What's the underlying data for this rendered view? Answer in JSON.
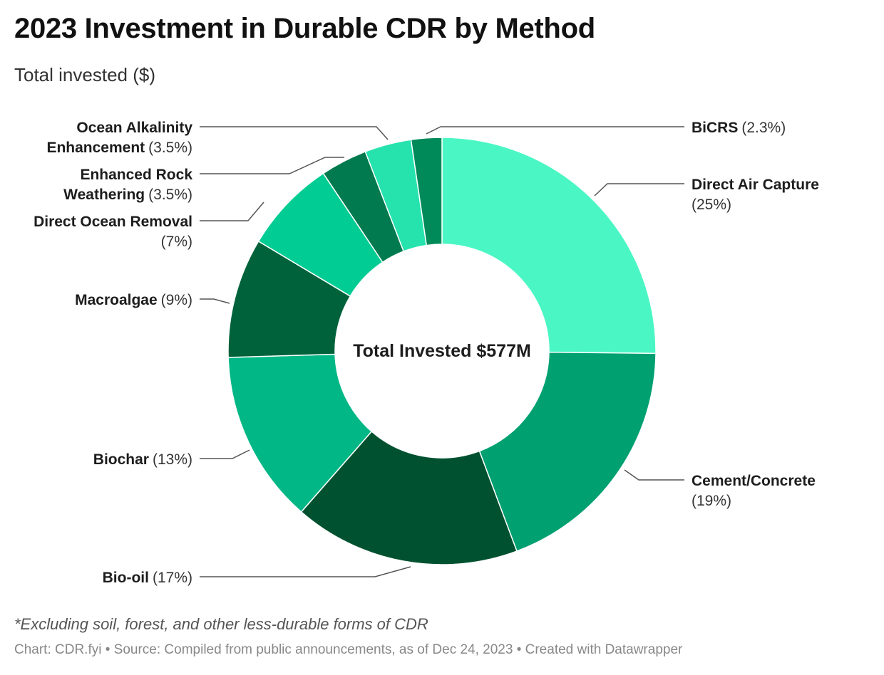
{
  "header": {
    "title": "2023 Investment in Durable CDR by Method",
    "subtitle": "Total invested ($)"
  },
  "chart_data": {
    "type": "pie",
    "donut": true,
    "center_label": "Total Invested $577M",
    "start_slice": "Direct Air Capture",
    "slices": [
      {
        "label": "Direct Air Capture",
        "value": 25,
        "value_text": "(25%)",
        "color": "#4af7c4"
      },
      {
        "label": "Cement/Concrete",
        "value": 19,
        "value_text": "(19%)",
        "color": "#00a070"
      },
      {
        "label": "Bio-oil",
        "value": 17,
        "value_text": "(17%)",
        "color": "#00512f"
      },
      {
        "label": "Biochar",
        "value": 13,
        "value_text": "(13%)",
        "color": "#00b785"
      },
      {
        "label": "Macroalgae",
        "value": 9,
        "value_text": "(9%)",
        "color": "#00623a"
      },
      {
        "label": "Direct Ocean Removal",
        "value": 7,
        "value_text": "(7%)",
        "color": "#00cc93"
      },
      {
        "label": "Enhanced Rock Weathering",
        "value": 3.5,
        "value_text": "(3.5%)",
        "color": "#007a4e"
      },
      {
        "label": "Ocean Alkalinity Enhancement",
        "value": 3.5,
        "value_text": "(3.5%)",
        "color": "#26e3ae"
      },
      {
        "label": "BiCRS",
        "value": 2.3,
        "value_text": "(2.3%)",
        "color": "#008a5a"
      }
    ]
  },
  "footer": {
    "note": "*Excluding soil, forest, and other less-durable forms of CDR",
    "source": "Chart: CDR.fyi • Source: Compiled from public announcements, as of Dec 24, 2023 • Created with Datawrapper"
  }
}
